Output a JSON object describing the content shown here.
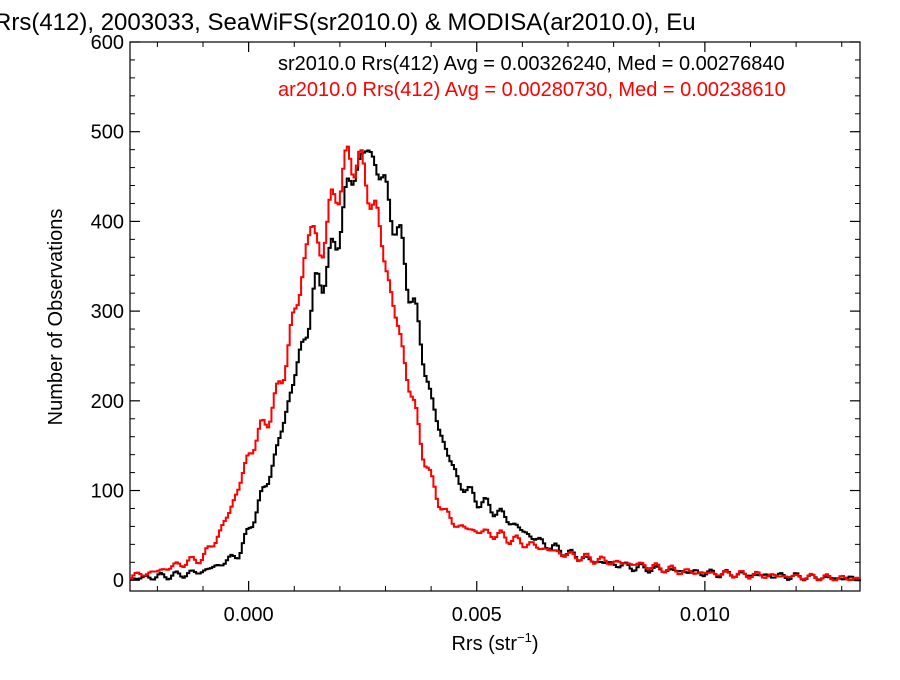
{
  "chart_data": {
    "type": "line",
    "title": "Rrs(412), 2003033, SeaWiFS(sr2010.0) & MODISA(ar2010.0), Eu",
    "xlabel": "Rrs (str",
    "xlabel_sup": "−1",
    "xlabel_close": ")",
    "ylabel": "Number of Observations",
    "xlim": [
      -0.0026,
      0.0134
    ],
    "ylim": [
      -12,
      600
    ],
    "x_ticks": [
      0.0,
      0.005,
      0.01
    ],
    "x_tick_labels": [
      "0.000",
      "0.005",
      "0.010"
    ],
    "y_ticks": [
      0,
      100,
      200,
      300,
      400,
      500,
      600
    ],
    "y_tick_labels": [
      "0",
      "100",
      "200",
      "300",
      "400",
      "500",
      "600"
    ],
    "grid": false,
    "legend_placement": "top-right",
    "annotations": [
      {
        "text": "sr2010.0 Rrs(412) Avg = 0.00326240, Med = 0.00276840",
        "color": "#000000"
      },
      {
        "text": "ar2010.0 Rrs(412) Avg = 0.00280730, Med = 0.00238610",
        "color": "#ff0000"
      }
    ],
    "series": [
      {
        "color": "#000000",
        "x": [
          -0.0025,
          -0.002,
          -0.0015,
          -0.001,
          -0.0006,
          -0.0002,
          0.0,
          0.0003,
          0.0006,
          0.0009,
          0.0012,
          0.0015,
          0.0018,
          0.002,
          0.0022,
          0.0024,
          0.0026,
          0.0028,
          0.003,
          0.0032,
          0.0034,
          0.0036,
          0.0038,
          0.004,
          0.0043,
          0.0046,
          0.005,
          0.0055,
          0.006,
          0.0065,
          0.007,
          0.0075,
          0.008,
          0.0085,
          0.009,
          0.0095,
          0.01,
          0.011,
          0.012,
          0.013,
          0.0134
        ],
        "y": [
          2,
          4,
          6,
          10,
          18,
          30,
          55,
          95,
          140,
          205,
          265,
          330,
          355,
          395,
          440,
          465,
          480,
          465,
          435,
          400,
          360,
          310,
          260,
          200,
          150,
          110,
          90,
          75,
          55,
          40,
          30,
          22,
          18,
          14,
          12,
          10,
          8,
          6,
          4,
          2,
          2
        ]
      },
      {
        "color": "#ff0000",
        "x": [
          -0.0025,
          -0.002,
          -0.0015,
          -0.001,
          -0.0006,
          -0.0002,
          0.0,
          0.0003,
          0.0006,
          0.0009,
          0.0012,
          0.0014,
          0.0016,
          0.0018,
          0.002,
          0.0022,
          0.0024,
          0.0026,
          0.0028,
          0.003,
          0.0032,
          0.0034,
          0.0036,
          0.0038,
          0.004,
          0.0043,
          0.0046,
          0.005,
          0.0055,
          0.006,
          0.0065,
          0.007,
          0.0075,
          0.008,
          0.0085,
          0.009,
          0.0095,
          0.01,
          0.011,
          0.012,
          0.013,
          0.0134
        ],
        "y": [
          5,
          10,
          18,
          25,
          55,
          105,
          140,
          170,
          200,
          265,
          350,
          400,
          360,
          420,
          440,
          470,
          470,
          440,
          410,
          355,
          300,
          250,
          200,
          150,
          110,
          75,
          60,
          55,
          50,
          42,
          35,
          28,
          24,
          20,
          18,
          14,
          10,
          8,
          6,
          4,
          2,
          2
        ]
      }
    ]
  }
}
